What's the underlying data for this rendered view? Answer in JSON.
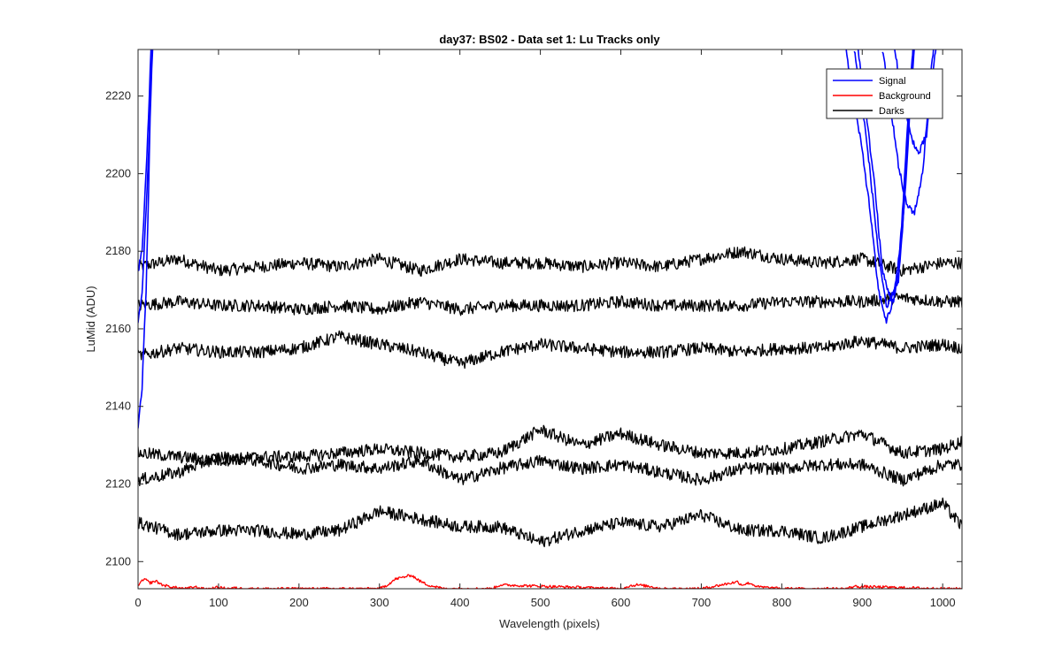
{
  "chart_data": {
    "type": "line",
    "title": "day37: BS02 - Data set 1: Lu Tracks only",
    "xlabel": "Wavelength (pixels)",
    "ylabel": "LuMid (ADU)",
    "xlim": [
      0,
      1024
    ],
    "ylim": [
      2093,
      2232
    ],
    "xticks": [
      0,
      100,
      200,
      300,
      400,
      500,
      600,
      700,
      800,
      900,
      1000
    ],
    "yticks": [
      2100,
      2120,
      2140,
      2160,
      2180,
      2200,
      2220
    ],
    "grid": false,
    "legend_position": "top-right",
    "legend": [
      {
        "label": "Signal",
        "color": "#0000ff"
      },
      {
        "label": "Background",
        "color": "#ff0000"
      },
      {
        "label": "Darks",
        "color": "#000000"
      }
    ],
    "series": [
      {
        "group": "Darks",
        "color": "#000000",
        "x": [
          0,
          50,
          100,
          150,
          200,
          250,
          300,
          350,
          400,
          450,
          500,
          550,
          600,
          650,
          700,
          750,
          800,
          850,
          900,
          950,
          1000,
          1024
        ],
        "y": [
          2176,
          2178,
          2175,
          2176,
          2177,
          2176,
          2178,
          2175,
          2178,
          2177,
          2177,
          2176,
          2177,
          2176,
          2178,
          2180,
          2178,
          2177,
          2178,
          2175,
          2177,
          2177
        ]
      },
      {
        "group": "Darks",
        "color": "#000000",
        "x": [
          0,
          50,
          100,
          150,
          200,
          250,
          300,
          350,
          400,
          450,
          500,
          550,
          600,
          650,
          700,
          750,
          800,
          850,
          900,
          950,
          1000,
          1024
        ],
        "y": [
          2166,
          2167,
          2166,
          2166,
          2165,
          2166,
          2165,
          2167,
          2165,
          2166,
          2166,
          2166,
          2167,
          2166,
          2166,
          2166,
          2167,
          2167,
          2167,
          2168,
          2167,
          2167
        ]
      },
      {
        "group": "Darks",
        "color": "#000000",
        "x": [
          0,
          50,
          100,
          150,
          200,
          250,
          300,
          350,
          400,
          450,
          500,
          550,
          600,
          650,
          700,
          750,
          800,
          850,
          900,
          950,
          1000,
          1024
        ],
        "y": [
          2153,
          2155,
          2154,
          2154,
          2155,
          2158,
          2156,
          2154,
          2151,
          2154,
          2156,
          2155,
          2154,
          2154,
          2155,
          2154,
          2155,
          2155,
          2157,
          2155,
          2156,
          2155
        ]
      },
      {
        "group": "Darks",
        "color": "#000000",
        "x": [
          0,
          50,
          100,
          150,
          200,
          250,
          300,
          350,
          400,
          450,
          500,
          550,
          600,
          650,
          700,
          750,
          800,
          850,
          900,
          950,
          1000,
          1024
        ],
        "y": [
          2128,
          2127,
          2126,
          2127,
          2127,
          2128,
          2129,
          2128,
          2127,
          2128,
          2134,
          2130,
          2133,
          2130,
          2128,
          2128,
          2129,
          2131,
          2133,
          2128,
          2129,
          2131
        ]
      },
      {
        "group": "Darks",
        "color": "#000000",
        "x": [
          0,
          50,
          100,
          150,
          200,
          250,
          300,
          350,
          400,
          450,
          500,
          550,
          600,
          650,
          700,
          750,
          800,
          850,
          900,
          950,
          1000,
          1024
        ],
        "y": [
          2121,
          2123,
          2127,
          2126,
          2124,
          2125,
          2124,
          2126,
          2121,
          2124,
          2126,
          2124,
          2125,
          2123,
          2121,
          2124,
          2124,
          2125,
          2125,
          2121,
          2125,
          2125
        ]
      },
      {
        "group": "Darks",
        "color": "#000000",
        "x": [
          0,
          50,
          100,
          150,
          200,
          250,
          300,
          350,
          400,
          450,
          500,
          550,
          600,
          650,
          700,
          750,
          800,
          850,
          900,
          950,
          1000,
          1024
        ],
        "y": [
          2110,
          2107,
          2108,
          2108,
          2107,
          2108,
          2113,
          2111,
          2109,
          2109,
          2105,
          2108,
          2110,
          2109,
          2112,
          2108,
          2108,
          2106,
          2109,
          2112,
          2115,
          2109
        ]
      },
      {
        "group": "Background",
        "color": "#ff0000",
        "x": [
          0,
          8,
          15,
          22,
          30,
          40,
          50,
          60,
          70,
          80,
          90,
          100,
          110,
          120,
          130,
          140,
          150,
          200,
          250,
          300,
          310,
          320,
          330,
          340,
          350,
          360,
          380,
          440,
          450,
          600,
          610,
          620,
          640,
          650,
          700,
          740,
          745,
          750,
          760,
          770,
          800,
          880,
          890,
          1000,
          1024
        ],
        "y": [
          2094,
          2095.5,
          2094.5,
          2095,
          2094,
          2093.5,
          2093.2,
          2093,
          2093.5,
          2093,
          2093,
          2093.4,
          2093,
          2093.2,
          2093,
          2093,
          2093,
          2093,
          2093,
          2093,
          2094,
          2095.5,
          2096,
          2096.5,
          2095,
          2094,
          2093,
          2093,
          2094,
          2093,
          2093.7,
          2094,
          2093.5,
          2093,
          2093,
          2094.6,
          2094.8,
          2094,
          2094.5,
          2093.5,
          2093,
          2093,
          2093.6,
          2093,
          2093
        ]
      },
      {
        "group": "Signal",
        "color": "#0000ff",
        "x": [
          0,
          5,
          10,
          13,
          15,
          18,
          20
        ],
        "y": [
          2135,
          2145,
          2170,
          2195,
          2215,
          2232,
          2245
        ]
      },
      {
        "group": "Signal",
        "color": "#0000ff",
        "x": [
          0,
          5,
          10,
          14,
          16,
          18,
          20
        ],
        "y": [
          2162,
          2170,
          2190,
          2210,
          2225,
          2235,
          2245
        ]
      },
      {
        "group": "Signal",
        "color": "#0000ff",
        "x": [
          0,
          5,
          10,
          14,
          16,
          18
        ],
        "y": [
          2175,
          2180,
          2200,
          2220,
          2232,
          2240
        ]
      },
      {
        "group": "Signal",
        "color": "#0000ff",
        "x": [
          880,
          890,
          900,
          910,
          920,
          930,
          940,
          945,
          950,
          960,
          970
        ],
        "y": [
          2232,
          2218,
          2206,
          2190,
          2170,
          2162,
          2168,
          2175,
          2190,
          2225,
          2245
        ]
      },
      {
        "group": "Signal",
        "color": "#0000ff",
        "x": [
          895,
          905,
          915,
          925,
          935,
          945,
          955,
          965
        ],
        "y": [
          2232,
          2215,
          2198,
          2175,
          2168,
          2172,
          2200,
          2240
        ]
      },
      {
        "group": "Signal",
        "color": "#0000ff",
        "x": [
          890,
          900,
          910,
          920,
          930,
          940,
          950,
          960,
          970
        ],
        "y": [
          2232,
          2218,
          2200,
          2180,
          2165,
          2170,
          2185,
          2220,
          2245
        ]
      },
      {
        "group": "Signal",
        "color": "#0000ff",
        "x": [
          925,
          935,
          945,
          955,
          965,
          975,
          985,
          995
        ],
        "y": [
          2232,
          2218,
          2202,
          2192,
          2190,
          2200,
          2225,
          2245
        ]
      },
      {
        "group": "Signal",
        "color": "#0000ff",
        "x": [
          940,
          950,
          960,
          970,
          980,
          990,
          1000
        ],
        "y": [
          2232,
          2220,
          2210,
          2205,
          2210,
          2230,
          2245
        ]
      }
    ]
  }
}
